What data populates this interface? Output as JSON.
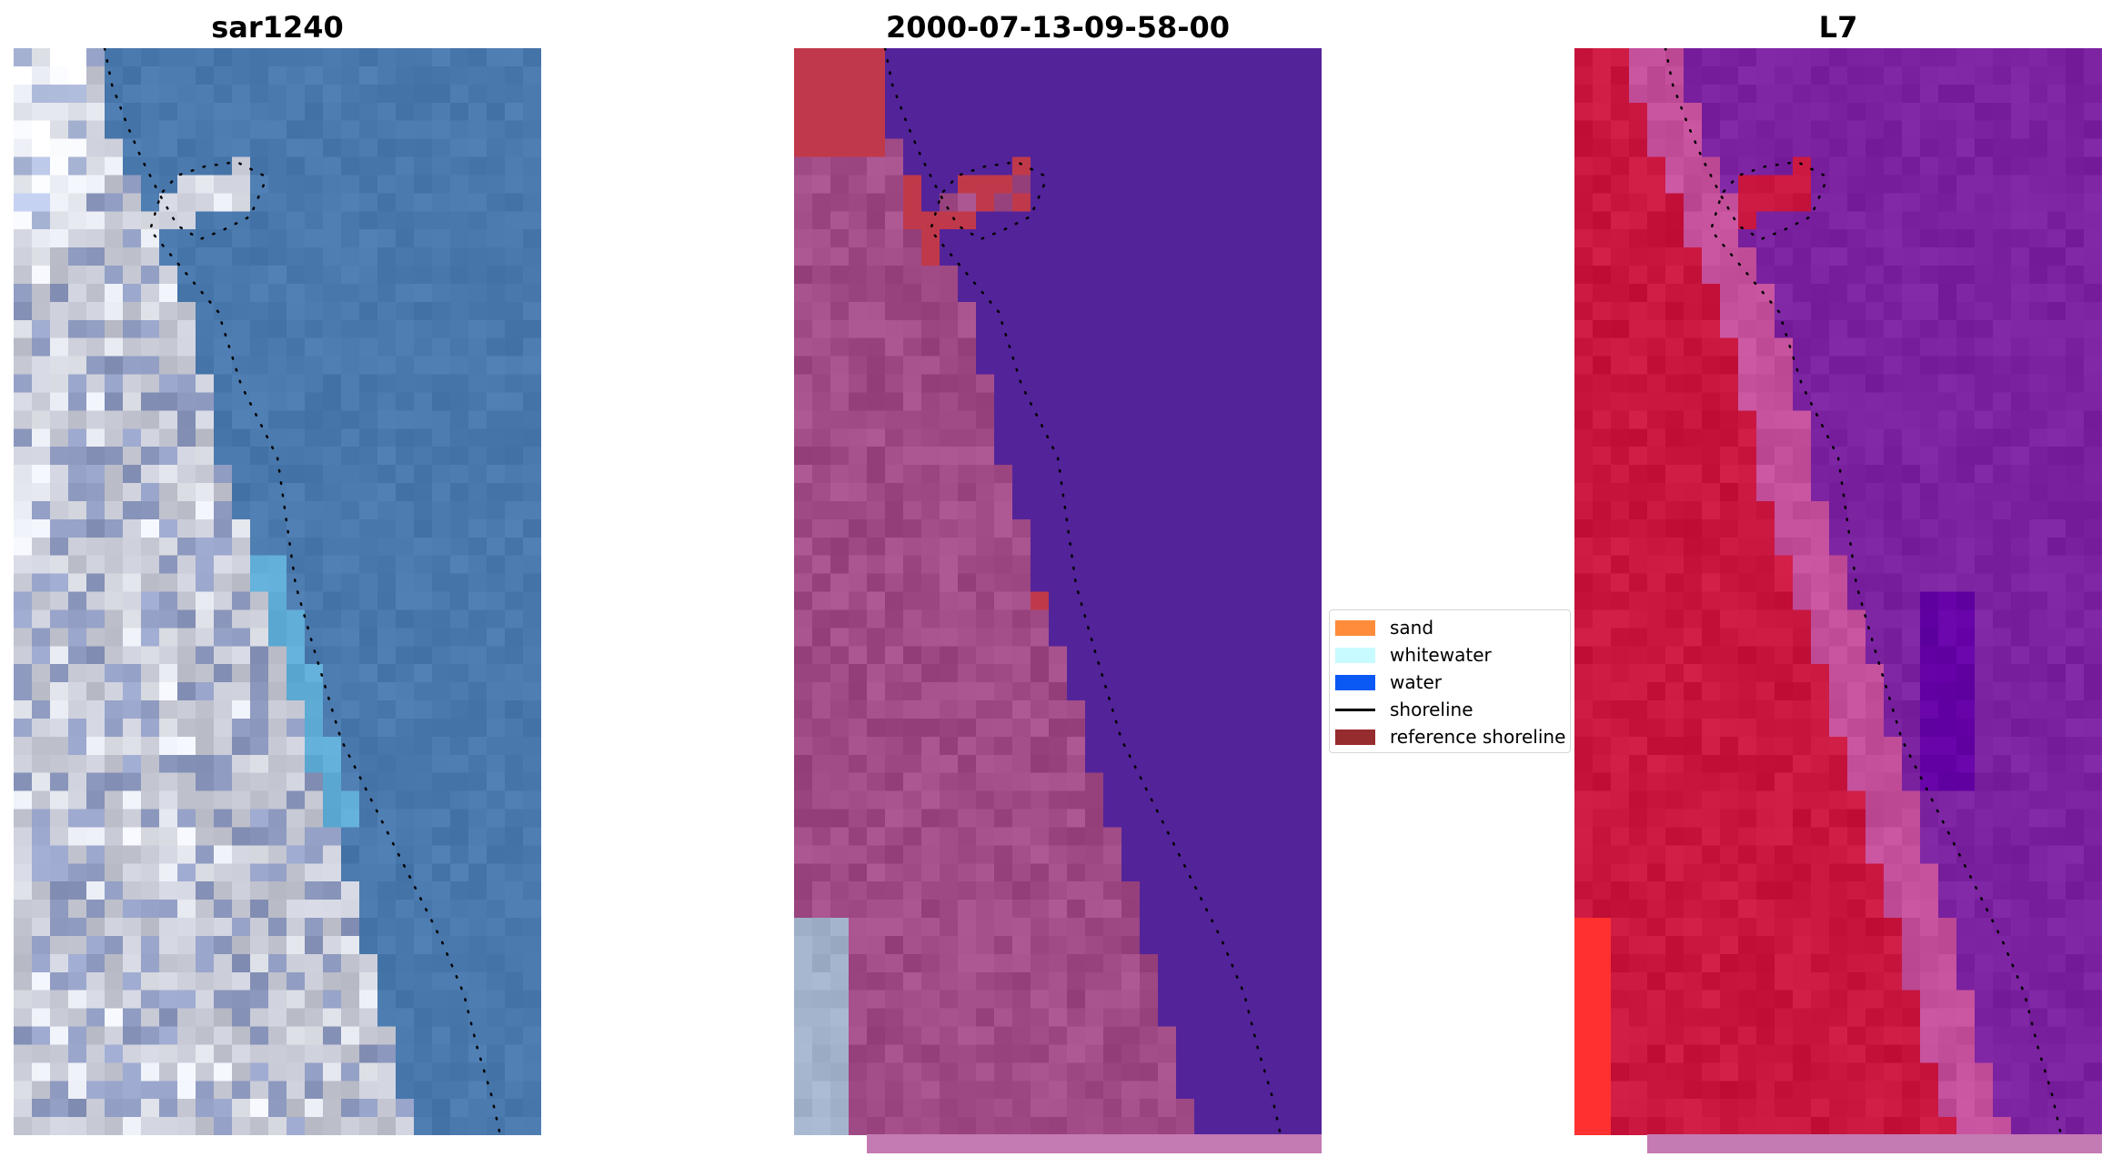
{
  "panels": [
    {
      "title": "sar1240",
      "kind": "rgb"
    },
    {
      "title": "2000-07-13-09-58-00",
      "kind": "classified"
    },
    {
      "title": "L7",
      "kind": "index"
    }
  ],
  "legend": {
    "entries": [
      {
        "label": "sand",
        "type": "patch",
        "color": "#ff8c3a"
      },
      {
        "label": "whitewater",
        "type": "patch",
        "color": "#c8fbff"
      },
      {
        "label": "water",
        "type": "patch",
        "color": "#0b59f5"
      },
      {
        "label": "shoreline",
        "type": "line",
        "color": "#000000"
      },
      {
        "label": "reference shoreline",
        "type": "patch",
        "color": "#962c2e"
      }
    ]
  },
  "colors": {
    "rgb_water": "#4a79ad",
    "rgb_land": "#c8cad6",
    "class_water": "#53239a",
    "class_land": "#a04b86",
    "class_ref": "#c0394a",
    "class_strip": "#c47ab2",
    "index_land": "#c8163f",
    "index_water": "#7b22a0",
    "index_edge": "#c34f9a"
  }
}
